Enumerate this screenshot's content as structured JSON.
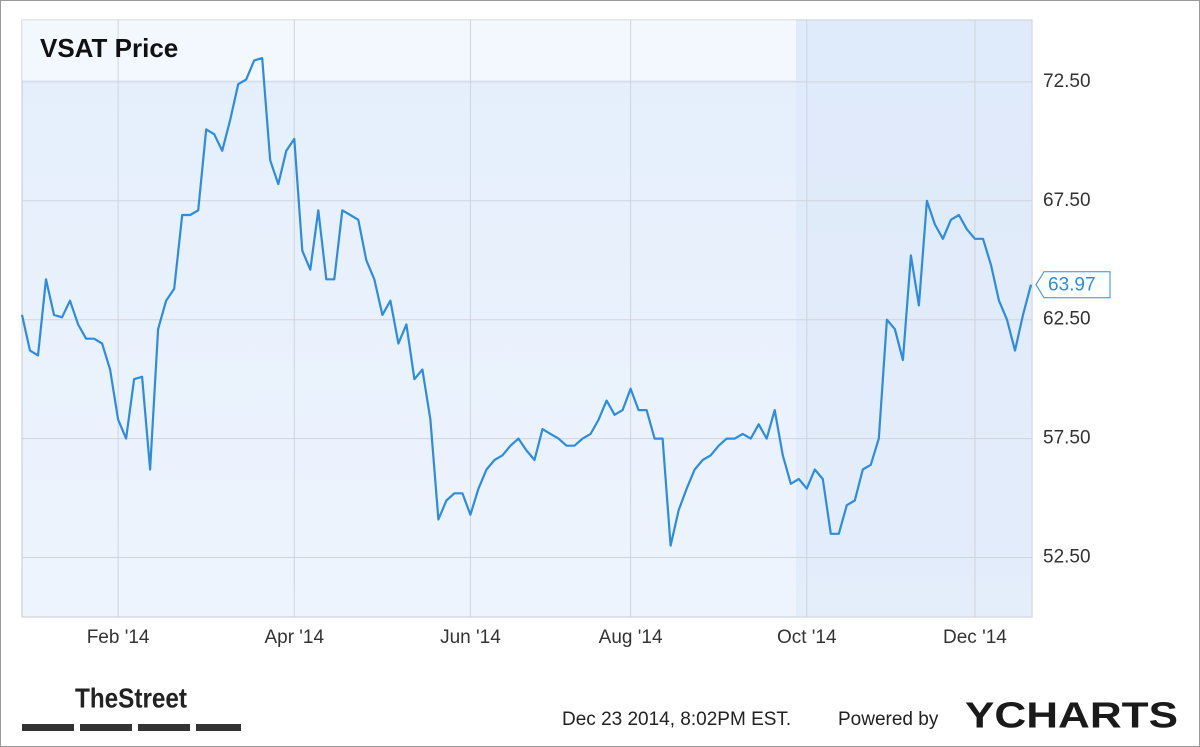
{
  "chart_data": {
    "type": "line",
    "title": "VSAT Price",
    "categories": [
      null,
      null,
      null,
      null,
      null,
      null,
      null,
      null,
      null,
      null,
      null,
      null,
      "Feb '14",
      null,
      null,
      null,
      null,
      null,
      null,
      null,
      null,
      null,
      null,
      null,
      null,
      null,
      null,
      null,
      null,
      null,
      null,
      null,
      null,
      null,
      "Apr '14",
      null,
      null,
      null,
      null,
      null,
      null,
      null,
      null,
      null,
      null,
      null,
      null,
      null,
      null,
      null,
      null,
      null,
      null,
      null,
      null,
      null,
      "Jun '14",
      null,
      null,
      null,
      null,
      null,
      null,
      null,
      null,
      null,
      null,
      null,
      null,
      null,
      null,
      null,
      null,
      null,
      null,
      null,
      "Aug '14",
      null,
      null,
      null,
      null,
      null,
      null,
      null,
      null,
      null,
      null,
      null,
      null,
      null,
      null,
      null,
      null,
      null,
      null,
      null,
      null,
      null,
      "Oct '14",
      null,
      null,
      null,
      null,
      null,
      null,
      null,
      null,
      null,
      null,
      null,
      null,
      null,
      null,
      null,
      null,
      null,
      null,
      null,
      null,
      "Dec '14",
      null,
      null,
      null,
      null,
      null,
      null,
      null
    ],
    "series": [
      {
        "name": "VSAT Price",
        "color": "#2b8ce0",
        "values": [
          62.7,
          61.2,
          61.0,
          64.2,
          62.7,
          62.6,
          63.3,
          62.3,
          61.7,
          61.7,
          61.5,
          60.4,
          58.3,
          57.5,
          60.0,
          60.1,
          56.2,
          62.1,
          63.3,
          63.8,
          66.9,
          66.9,
          67.1,
          70.5,
          70.3,
          69.6,
          70.9,
          72.4,
          72.6,
          73.4,
          73.5,
          69.2,
          68.2,
          69.6,
          70.1,
          65.4,
          64.6,
          67.1,
          64.2,
          64.2,
          67.1,
          66.9,
          66.7,
          65.0,
          64.2,
          62.7,
          63.3,
          61.5,
          62.3,
          60.0,
          60.4,
          58.3,
          54.1,
          54.9,
          55.2,
          55.2,
          54.3,
          55.4,
          56.2,
          56.6,
          56.8,
          57.2,
          57.5,
          57.0,
          56.6,
          57.9,
          57.7,
          57.5,
          57.2,
          57.2,
          57.5,
          57.7,
          58.3,
          59.1,
          58.5,
          58.7,
          59.6,
          58.7,
          58.7,
          57.5,
          57.5,
          53.0,
          54.5,
          55.4,
          56.2,
          56.6,
          56.8,
          57.2,
          57.5,
          57.5,
          57.7,
          57.5,
          58.1,
          57.5,
          58.7,
          56.8,
          55.6,
          55.8,
          55.4,
          56.2,
          55.8,
          53.5,
          53.5,
          54.7,
          54.9,
          56.2,
          56.4,
          57.5,
          62.5,
          62.1,
          60.8,
          65.2,
          63.1,
          67.5,
          66.5,
          65.9,
          66.7,
          66.9,
          66.3,
          65.9,
          65.9,
          64.8,
          63.3,
          62.5,
          61.2,
          62.7,
          63.97
        ]
      }
    ],
    "ylim": [
      50,
      75.1
    ],
    "yticks": [
      {
        "value": 52.5,
        "label": "52.50"
      },
      {
        "value": 57.5,
        "label": "57.50"
      },
      {
        "value": 62.5,
        "label": "62.50"
      },
      {
        "value": 67.5,
        "label": "67.50"
      },
      {
        "value": 72.5,
        "label": "72.50"
      }
    ],
    "grid": true,
    "logo": "TheStreet",
    "timestamp": "Dec 23 2014, 8:02PM EST.",
    "credit": "Powered by",
    "brand": "YCHARTS"
  }
}
